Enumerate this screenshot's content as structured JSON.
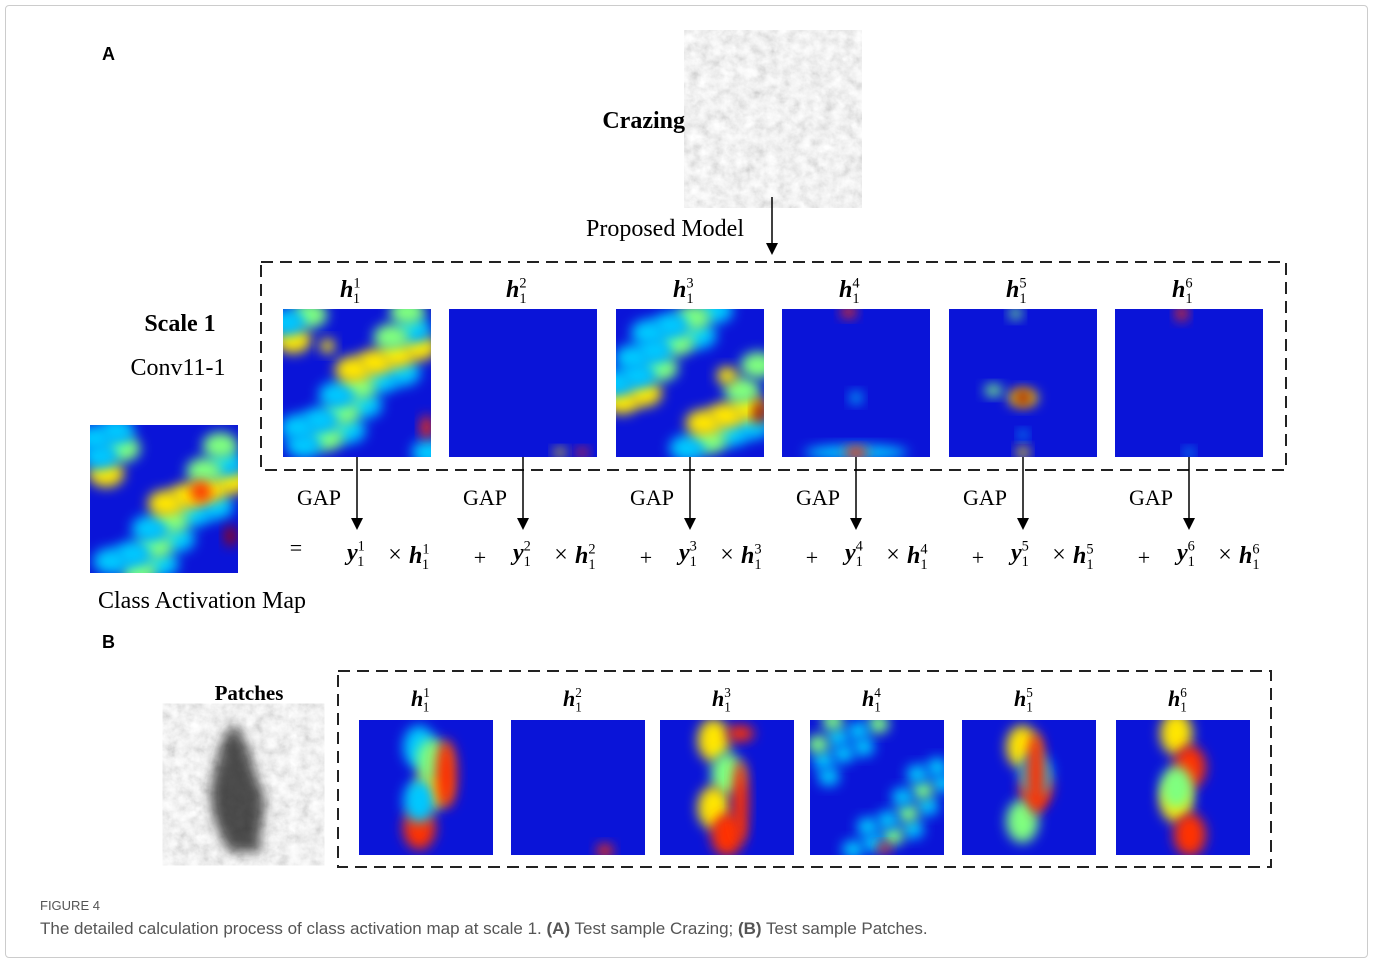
{
  "panel_a": {
    "letter": "A",
    "sample": "Crazing",
    "model": "Proposed Model",
    "scale": "Scale 1",
    "layer": "Conv11-1",
    "maps": [
      {
        "symbol": "h",
        "sub": "1",
        "sup": "1"
      },
      {
        "symbol": "h",
        "sub": "1",
        "sup": "2"
      },
      {
        "symbol": "h",
        "sub": "1",
        "sup": "3"
      },
      {
        "symbol": "h",
        "sub": "1",
        "sup": "4"
      },
      {
        "symbol": "h",
        "sub": "1",
        "sup": "5"
      },
      {
        "symbol": "h",
        "sub": "1",
        "sup": "6"
      }
    ],
    "pool": [
      "GAP",
      "GAP",
      "GAP",
      "GAP",
      "GAP",
      "GAP"
    ],
    "equals": "=",
    "terms": [
      {
        "coef": {
          "symbol": "y",
          "sub": "1",
          "sup": "1"
        },
        "times": "×",
        "map": {
          "symbol": "h",
          "sub": "1",
          "sup": "1"
        }
      },
      {
        "plus": "+",
        "coef": {
          "symbol": "y",
          "sub": "1",
          "sup": "2"
        },
        "times": "×",
        "map": {
          "symbol": "h",
          "sub": "1",
          "sup": "2"
        }
      },
      {
        "plus": "+",
        "coef": {
          "symbol": "y",
          "sub": "1",
          "sup": "3"
        },
        "times": "×",
        "map": {
          "symbol": "h",
          "sub": "1",
          "sup": "3"
        }
      },
      {
        "plus": "+",
        "coef": {
          "symbol": "y",
          "sub": "1",
          "sup": "4"
        },
        "times": "×",
        "map": {
          "symbol": "h",
          "sub": "1",
          "sup": "4"
        }
      },
      {
        "plus": "+",
        "coef": {
          "symbol": "y",
          "sub": "1",
          "sup": "5"
        },
        "times": "×",
        "map": {
          "symbol": "h",
          "sub": "1",
          "sup": "5"
        }
      },
      {
        "plus": "+",
        "coef": {
          "symbol": "y",
          "sub": "1",
          "sup": "6"
        },
        "times": "×",
        "map": {
          "symbol": "h",
          "sub": "1",
          "sup": "6"
        }
      }
    ],
    "result": "Class Activation Map"
  },
  "panel_b": {
    "letter": "B",
    "sample": "Patches",
    "maps": [
      {
        "symbol": "h",
        "sub": "1",
        "sup": "1"
      },
      {
        "symbol": "h",
        "sub": "1",
        "sup": "2"
      },
      {
        "symbol": "h",
        "sub": "1",
        "sup": "3"
      },
      {
        "symbol": "h",
        "sub": "1",
        "sup": "4"
      },
      {
        "symbol": "h",
        "sub": "1",
        "sup": "5"
      },
      {
        "symbol": "h",
        "sub": "1",
        "sup": "6"
      }
    ]
  },
  "caption": {
    "label": "FIGURE 4",
    "parts": [
      {
        "text": "The detailed calculation process of class activation map at scale 1. "
      },
      {
        "text": "(A)",
        "bold": true
      },
      {
        "text": " Test sample Crazing; "
      },
      {
        "text": "(B)",
        "bold": true
      },
      {
        "text": " Test sample Patches."
      }
    ]
  }
}
